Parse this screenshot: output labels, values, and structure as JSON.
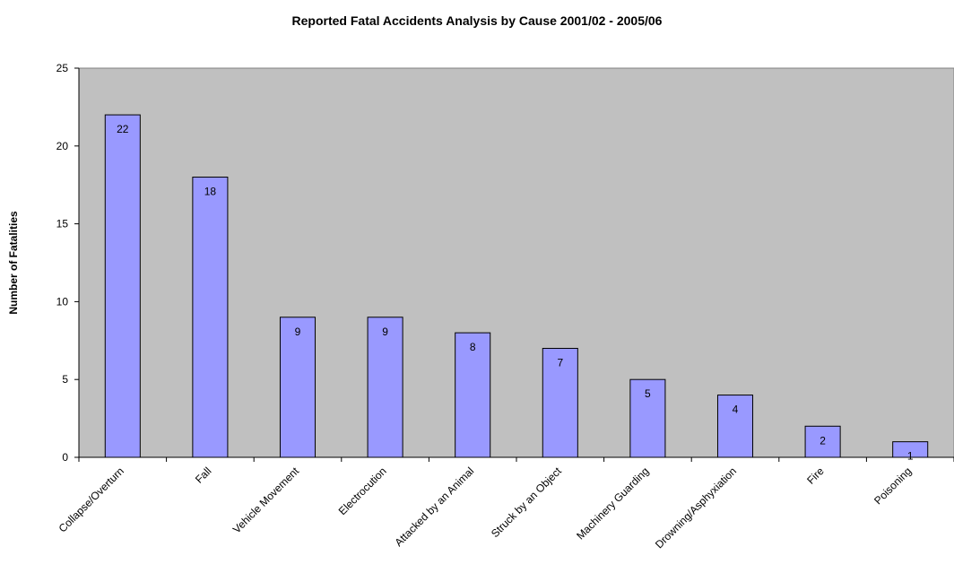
{
  "chart_data": {
    "type": "bar",
    "title": "Reported Fatal Accidents Analysis by Cause 2001/02 - 2005/06",
    "xlabel": "",
    "ylabel": "Number of Fatalities",
    "categories": [
      "Collapse/Overturn",
      "Fall",
      "Vehicle Movement",
      "Electrocution",
      "Attacked by an Animal",
      "Struck by an Object",
      "Machinery Guarding",
      "Drowning/Asphyxiation",
      "Fire",
      "Poisoning"
    ],
    "values": [
      22,
      18,
      9,
      9,
      8,
      7,
      5,
      4,
      2,
      1
    ],
    "ylim": [
      0,
      25
    ],
    "yticks": [
      0,
      5,
      10,
      15,
      20,
      25
    ],
    "grid": false,
    "legend": "none",
    "colors": {
      "plot_background": "#c0c0c0",
      "bar_fill": "#9999ff",
      "bar_stroke": "#000000"
    }
  }
}
